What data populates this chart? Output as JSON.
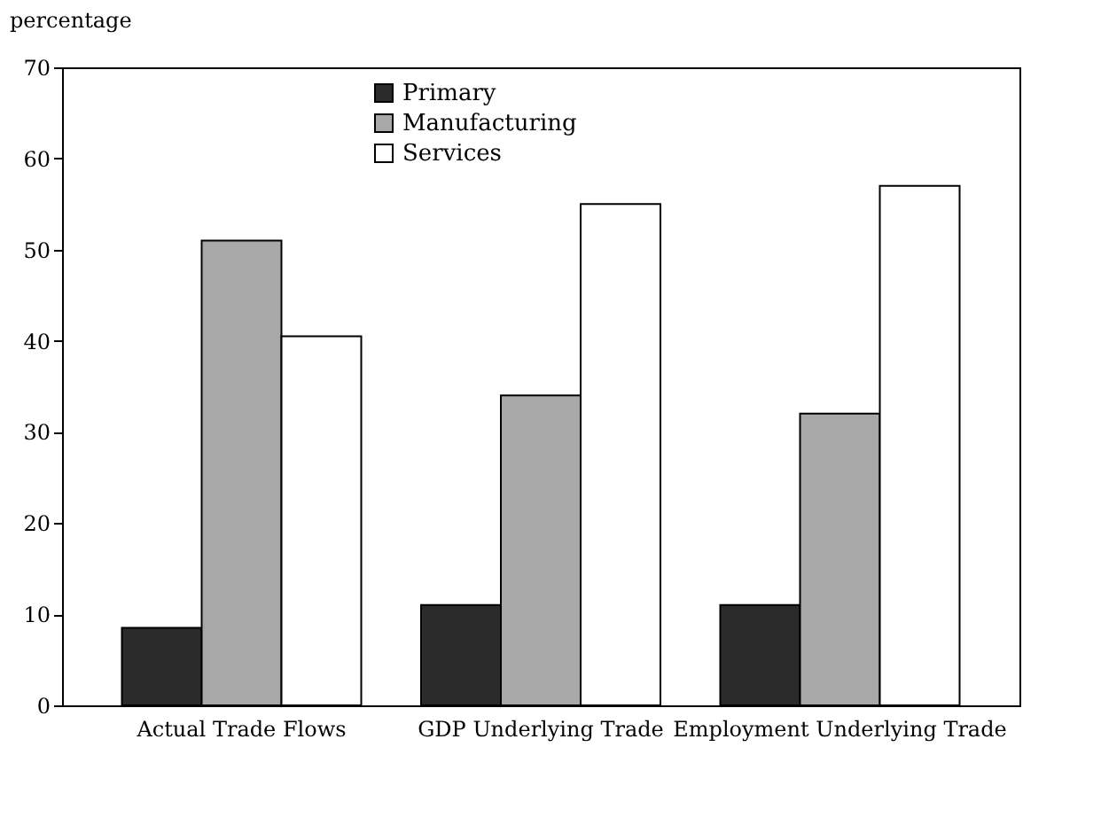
{
  "chart_data": {
    "type": "bar",
    "ylabel": "percentage",
    "categories": [
      "Actual Trade Flows",
      "GDP Underlying Trade",
      "Employment Underlying Trade"
    ],
    "series": [
      {
        "name": "Primary",
        "color": "#2b2b2b",
        "values": [
          8.5,
          11,
          11
        ]
      },
      {
        "name": "Manufacturing",
        "color": "#a8a8a8",
        "values": [
          51,
          34,
          32
        ]
      },
      {
        "name": "Services",
        "color": "#ffffff",
        "values": [
          40.5,
          55,
          57
        ]
      }
    ],
    "ylim": [
      0,
      70
    ],
    "yticks": [
      0,
      10,
      20,
      30,
      40,
      50,
      60,
      70
    ],
    "grid": false,
    "legend": "top left"
  }
}
